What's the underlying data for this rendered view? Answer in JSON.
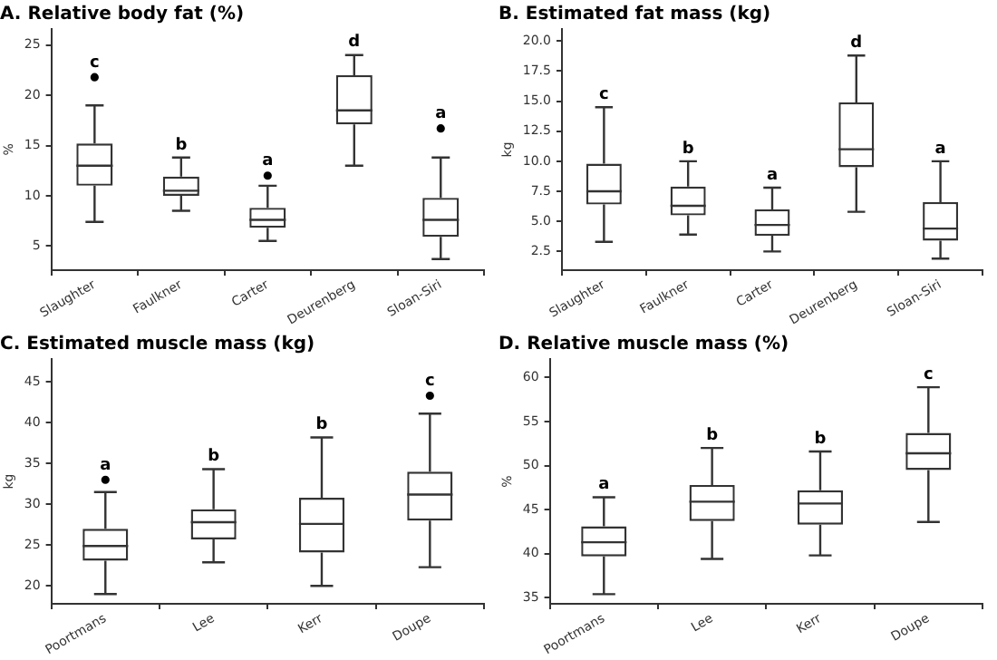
{
  "chart_data": [
    {
      "type": "box",
      "title": "A. Relative body fat (%)",
      "ylabel": "%",
      "categories": [
        "Slaughter",
        "Faulkner",
        "Carter",
        "Deurenberg",
        "Sloan-Siri"
      ],
      "color": "#333333",
      "ylim": [
        2.6,
        26.6
      ],
      "yticks": [
        5,
        10,
        15,
        20,
        25
      ],
      "boxes": [
        {
          "low": 7.4,
          "q1": 11,
          "median": 13,
          "q3": 15.2,
          "high": 19,
          "outliers": [
            21.8
          ]
        },
        {
          "low": 8.5,
          "q1": 10,
          "median": 10.5,
          "q3": 11.9,
          "high": 13.8
        },
        {
          "low": 5.5,
          "q1": 6.8,
          "median": 7.6,
          "q3": 8.8,
          "high": 11,
          "outliers": [
            12
          ]
        },
        {
          "low": 13,
          "q1": 17.1,
          "median": 18.5,
          "q3": 22,
          "high": 24
        },
        {
          "low": 3.7,
          "q1": 5.9,
          "median": 7.6,
          "q3": 9.8,
          "high": 13.8,
          "outliers": [
            16.7
          ]
        }
      ],
      "annotations": [
        "c",
        "b",
        "a",
        "d",
        "a"
      ]
    },
    {
      "type": "box",
      "title": "B. Estimated fat mass (kg)",
      "ylabel": "kg",
      "categories": [
        "Slaughter",
        "Faulkner",
        "Carter",
        "Deurenberg",
        "Sloan-Siri"
      ],
      "color": "#333333",
      "ylim": [
        0.95,
        21
      ],
      "yticks": [
        2.5,
        {
          "value": 5,
          "label": "5.0"
        },
        7.5,
        {
          "value": 10,
          "label": "10.0"
        },
        12.5,
        {
          "value": 15,
          "label": "15.0"
        },
        17.5,
        {
          "value": 20,
          "label": "20.0"
        }
      ],
      "boxes": [
        {
          "low": 3.3,
          "q1": 6.4,
          "median": 7.5,
          "q3": 9.8,
          "high": 14.5
        },
        {
          "low": 3.9,
          "q1": 5.5,
          "median": 6.3,
          "q3": 7.9,
          "high": 10
        },
        {
          "low": 2.5,
          "q1": 3.8,
          "median": 4.7,
          "q3": 6,
          "high": 7.8
        },
        {
          "low": 5.8,
          "q1": 9.5,
          "median": 11,
          "q3": 14.9,
          "high": 18.8
        },
        {
          "low": 1.9,
          "q1": 3.4,
          "median": 4.4,
          "q3": 6.6,
          "high": 10
        }
      ],
      "annotations": [
        "c",
        "b",
        "a",
        "d",
        "a"
      ]
    },
    {
      "type": "box",
      "title": "C. Estimated muscle mass (kg)",
      "ylabel": "kg",
      "categories": [
        "Poortmans",
        "Lee",
        "Kerr",
        "Doupe"
      ],
      "color": "#333333",
      "ylim": [
        17.8,
        47.8
      ],
      "yticks": [
        20,
        25,
        30,
        35,
        40,
        45
      ],
      "boxes": [
        {
          "low": 19,
          "q1": 23.1,
          "median": 24.9,
          "q3": 27,
          "high": 31.5,
          "outliers": [
            33
          ]
        },
        {
          "low": 22.9,
          "q1": 25.7,
          "median": 27.8,
          "q3": 29.4,
          "high": 34.3
        },
        {
          "low": 20,
          "q1": 24.1,
          "median": 27.6,
          "q3": 30.8,
          "high": 38.2
        },
        {
          "low": 22.3,
          "q1": 28,
          "median": 31.2,
          "q3": 34,
          "high": 41.1,
          "outliers": [
            43.3
          ]
        }
      ],
      "annotations": [
        "a",
        "b",
        "b",
        "c"
      ]
    },
    {
      "type": "box",
      "title": "D. Relative muscle mass (%)",
      "ylabel": "%",
      "categories": [
        "Poortmans",
        "Lee",
        "Kerr",
        "Doupe"
      ],
      "color": "#333333",
      "ylim": [
        34.3,
        62.1
      ],
      "yticks": [
        35,
        40,
        45,
        50,
        55,
        60
      ],
      "boxes": [
        {
          "low": 35.4,
          "q1": 39.7,
          "median": 41.3,
          "q3": 43.1,
          "high": 46.4
        },
        {
          "low": 39.4,
          "q1": 43.7,
          "median": 45.9,
          "q3": 47.8,
          "high": 52
        },
        {
          "low": 39.8,
          "q1": 43.3,
          "median": 45.7,
          "q3": 47.2,
          "high": 51.6
        },
        {
          "low": 43.6,
          "q1": 49.5,
          "median": 51.4,
          "q3": 53.7,
          "high": 58.9
        }
      ],
      "annotations": [
        "a",
        "b",
        "b",
        "c"
      ]
    }
  ]
}
